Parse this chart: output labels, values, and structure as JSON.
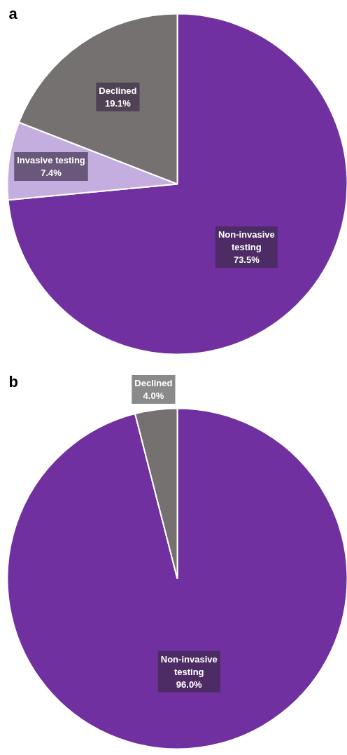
{
  "chart_data": [
    {
      "type": "pie",
      "title": "a",
      "categories": [
        "Non-invasive testing",
        "Invasive testing",
        "Declined"
      ],
      "values": [
        73.5,
        7.4,
        19.1
      ],
      "value_labels": [
        "73.5%",
        "7.4%",
        "19.1%"
      ],
      "colors": [
        "#7030a0",
        "#c4aee0",
        "#767171"
      ]
    },
    {
      "type": "pie",
      "title": "b",
      "categories": [
        "Non-invasive testing",
        "Declined"
      ],
      "values": [
        96.0,
        4.0
      ],
      "value_labels": [
        "96.0%",
        "4.0%"
      ],
      "colors": [
        "#7030a0",
        "#767171"
      ]
    }
  ]
}
